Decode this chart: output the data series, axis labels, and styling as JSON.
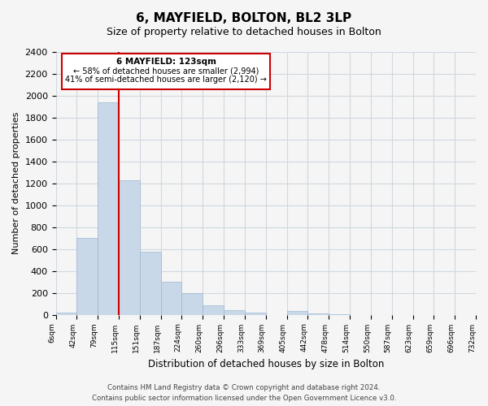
{
  "title": "6, MAYFIELD, BOLTON, BL2 3LP",
  "subtitle": "Size of property relative to detached houses in Bolton",
  "xlabel": "Distribution of detached houses by size in Bolton",
  "ylabel": "Number of detached properties",
  "bin_labels": [
    "6sqm",
    "42sqm",
    "79sqm",
    "115sqm",
    "151sqm",
    "187sqm",
    "224sqm",
    "260sqm",
    "296sqm",
    "333sqm",
    "369sqm",
    "405sqm",
    "442sqm",
    "478sqm",
    "514sqm",
    "550sqm",
    "587sqm",
    "623sqm",
    "659sqm",
    "696sqm",
    "732sqm"
  ],
  "bar_values": [
    20,
    700,
    1940,
    1230,
    575,
    300,
    200,
    85,
    45,
    20,
    0,
    35,
    15,
    5,
    0,
    0,
    0,
    0,
    0,
    0
  ],
  "bar_color": "#c8d8e8",
  "bar_edge_color": "#a0b8d0",
  "vertical_line_x": 3,
  "vertical_line_color": "#cc0000",
  "annotation_title": "6 MAYFIELD: 123sqm",
  "annotation_line1": "← 58% of detached houses are smaller (2,994)",
  "annotation_line2": "41% of semi-detached houses are larger (2,120) →",
  "annotation_box_color": "#cc0000",
  "ylim": [
    0,
    2400
  ],
  "yticks": [
    0,
    200,
    400,
    600,
    800,
    1000,
    1200,
    1400,
    1600,
    1800,
    2000,
    2200,
    2400
  ],
  "footer_line1": "Contains HM Land Registry data © Crown copyright and database right 2024.",
  "footer_line2": "Contains public sector information licensed under the Open Government Licence v3.0.",
  "bg_color": "#f5f5f5",
  "grid_color": "#d0d8e0"
}
